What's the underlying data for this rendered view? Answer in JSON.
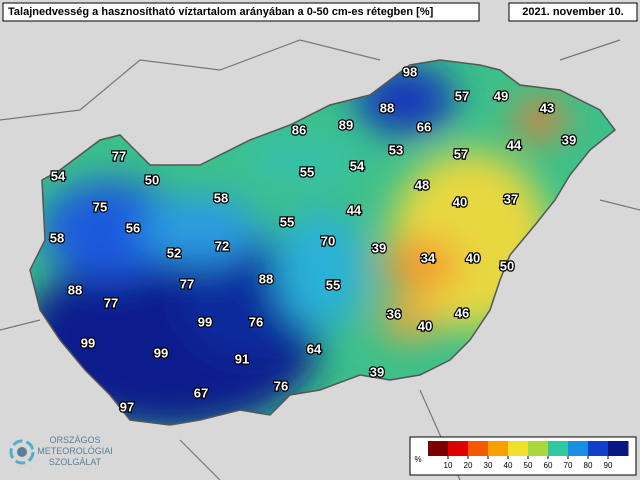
{
  "header": {
    "title": "Talajnedvesség a hasznosítható víztartalom arányában a 0-50 cm-es rétegben [%]",
    "date": "2021. november 10."
  },
  "map": {
    "values": [
      98,
      57,
      49,
      43,
      88,
      86,
      89,
      66,
      39,
      77,
      53,
      57,
      44,
      54,
      50,
      55,
      54,
      48,
      40,
      37,
      58,
      75,
      56,
      55,
      44,
      58,
      72,
      70,
      39,
      34,
      40,
      50,
      52,
      88,
      88,
      55,
      77,
      77,
      36,
      40,
      46,
      99,
      76,
      99,
      99,
      91,
      64,
      39,
      67,
      76,
      97
    ]
  },
  "legend": {
    "unit": "%",
    "lim": [
      0,
      100
    ],
    "ticks": [
      10,
      20,
      30,
      40,
      50,
      60,
      70,
      80,
      90
    ]
  },
  "logo": {
    "lines": [
      "ORSZÁGOS",
      "METEOROLÓGIAI",
      "SZOLGÁLAT"
    ]
  }
}
